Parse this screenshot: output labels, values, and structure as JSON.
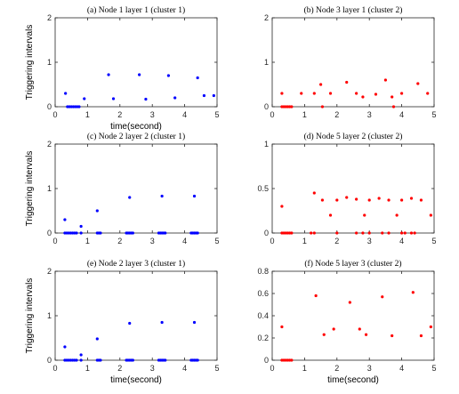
{
  "chart_data": [
    {
      "type": "scatter",
      "title": "(a) Node 1 layer 1 (cluster 1)",
      "xlabel": "time(second)",
      "ylabel": "Triggering intervals",
      "xlim": [
        0,
        5
      ],
      "ylim": [
        0,
        2
      ],
      "xticks": [
        0,
        1,
        2,
        3,
        4,
        5
      ],
      "yticks": [
        0,
        1,
        2
      ],
      "color": "#0000ff",
      "x": [
        0.32,
        0.38,
        0.44,
        0.5,
        0.56,
        0.62,
        0.68,
        0.74,
        0.9,
        1.65,
        1.8,
        2.6,
        2.8,
        3.5,
        3.7,
        4.4,
        4.6,
        4.9
      ],
      "y": [
        0.3,
        0,
        0,
        0,
        0,
        0,
        0,
        0,
        0.18,
        0.72,
        0.18,
        0.72,
        0.17,
        0.7,
        0.2,
        0.65,
        0.25,
        0.25
      ]
    },
    {
      "type": "scatter",
      "title": "(b) Node 3 layer 1 (cluster 2)",
      "xlabel": "",
      "ylabel": "",
      "xlim": [
        0,
        5
      ],
      "ylim": [
        0,
        2
      ],
      "xticks": [
        0,
        1,
        2,
        3,
        4,
        5
      ],
      "yticks": [
        0,
        1,
        2
      ],
      "color": "#ff0000",
      "x": [
        0.3,
        0.3,
        0.36,
        0.42,
        0.48,
        0.54,
        0.6,
        0.9,
        1.3,
        1.5,
        1.55,
        1.8,
        2.3,
        2.6,
        2.8,
        3.2,
        3.5,
        3.7,
        3.75,
        4.0,
        4.5,
        4.8
      ],
      "y": [
        0.3,
        0,
        0,
        0,
        0,
        0,
        0,
        0.3,
        0.3,
        0.5,
        0,
        0.3,
        0.55,
        0.3,
        0.22,
        0.28,
        0.6,
        0.22,
        0,
        0.3,
        0.52,
        0.3
      ]
    },
    {
      "type": "scatter",
      "title": "(c) Node 2 layer 2 (cluster 1)",
      "xlabel": "",
      "ylabel": "Triggering intervals",
      "xlim": [
        0,
        5
      ],
      "ylim": [
        0,
        2
      ],
      "xticks": [
        0,
        1,
        2,
        3,
        4,
        5
      ],
      "yticks": [
        0,
        1,
        2
      ],
      "color": "#0000ff",
      "x": [
        0.3,
        0.3,
        0.36,
        0.42,
        0.48,
        0.54,
        0.6,
        0.66,
        0.8,
        0.8,
        1.3,
        1.3,
        1.35,
        1.4,
        2.3,
        2.2,
        2.25,
        2.3,
        2.35,
        2.4,
        3.3,
        3.2,
        3.25,
        3.3,
        3.35,
        3.4,
        4.3,
        4.2,
        4.25,
        4.3,
        4.35,
        4.4
      ],
      "y": [
        0.3,
        0,
        0,
        0,
        0,
        0,
        0,
        0,
        0.15,
        0,
        0.5,
        0,
        0,
        0,
        0.8,
        0,
        0,
        0,
        0,
        0,
        0.83,
        0,
        0,
        0,
        0,
        0,
        0.83,
        0,
        0,
        0,
        0,
        0
      ]
    },
    {
      "type": "scatter",
      "title": "(d) Node 5 layer 2 (cluster 2)",
      "xlabel": "",
      "ylabel": "",
      "xlim": [
        0,
        5
      ],
      "ylim": [
        0,
        1
      ],
      "xticks": [
        0,
        1,
        2,
        3,
        4,
        5
      ],
      "yticks": [
        0,
        0.5,
        1
      ],
      "color": "#ff0000",
      "x": [
        0.3,
        0.3,
        0.36,
        0.42,
        0.48,
        0.54,
        0.6,
        1.2,
        1.3,
        1.55,
        1.8,
        2.0,
        2.3,
        2.6,
        2.85,
        3.0,
        3.3,
        3.6,
        3.85,
        4.0,
        4.3,
        4.6,
        4.9,
        1.3,
        2.0,
        2.6,
        2.8,
        3.0,
        3.4,
        3.6,
        4.0,
        4.1,
        4.3,
        4.4
      ],
      "y": [
        0.3,
        0,
        0,
        0,
        0,
        0,
        0,
        0,
        0.45,
        0.37,
        0.2,
        0.37,
        0.4,
        0.38,
        0.2,
        0.37,
        0.39,
        0.37,
        0.2,
        0.37,
        0.39,
        0.37,
        0.2,
        0,
        0,
        0,
        0,
        0,
        0,
        0,
        0,
        0,
        0,
        0
      ]
    },
    {
      "type": "scatter",
      "title": "(e) Node 2 layer 3 (cluster 1)",
      "xlabel": "time(second)",
      "ylabel": "Triggering intervals",
      "xlim": [
        0,
        5
      ],
      "ylim": [
        0,
        2
      ],
      "xticks": [
        0,
        1,
        2,
        3,
        4,
        5
      ],
      "yticks": [
        0,
        1,
        2
      ],
      "color": "#0000ff",
      "x": [
        0.3,
        0.3,
        0.36,
        0.42,
        0.48,
        0.54,
        0.6,
        0.66,
        0.8,
        0.8,
        1.3,
        1.3,
        1.35,
        1.4,
        2.3,
        2.2,
        2.25,
        2.3,
        2.35,
        2.4,
        3.3,
        3.2,
        3.25,
        3.3,
        3.35,
        3.4,
        4.3,
        4.2,
        4.25,
        4.3,
        4.35,
        4.4
      ],
      "y": [
        0.3,
        0,
        0,
        0,
        0,
        0,
        0,
        0,
        0.12,
        0,
        0.48,
        0,
        0,
        0,
        0.83,
        0,
        0,
        0,
        0,
        0,
        0.85,
        0,
        0,
        0,
        0,
        0,
        0.85,
        0,
        0,
        0,
        0,
        0
      ]
    },
    {
      "type": "scatter",
      "title": "(f) Node 5 layer 3 (cluster 2)",
      "xlabel": "time(second)",
      "ylabel": "",
      "xlim": [
        0,
        5
      ],
      "ylim": [
        0,
        0.8
      ],
      "xticks": [
        0,
        1,
        2,
        3,
        4,
        5
      ],
      "yticks": [
        0,
        0.2,
        0.4,
        0.6,
        0.8
      ],
      "color": "#ff0000",
      "x": [
        0.3,
        0.3,
        0.36,
        0.42,
        0.48,
        0.54,
        0.6,
        1.35,
        1.6,
        1.9,
        2.4,
        2.7,
        2.9,
        3.4,
        3.7,
        4.35,
        4.6,
        4.9
      ],
      "y": [
        0.3,
        0,
        0,
        0,
        0,
        0,
        0,
        0.58,
        0.23,
        0.28,
        0.52,
        0.28,
        0.23,
        0.57,
        0.22,
        0.61,
        0.22,
        0.3
      ]
    }
  ]
}
